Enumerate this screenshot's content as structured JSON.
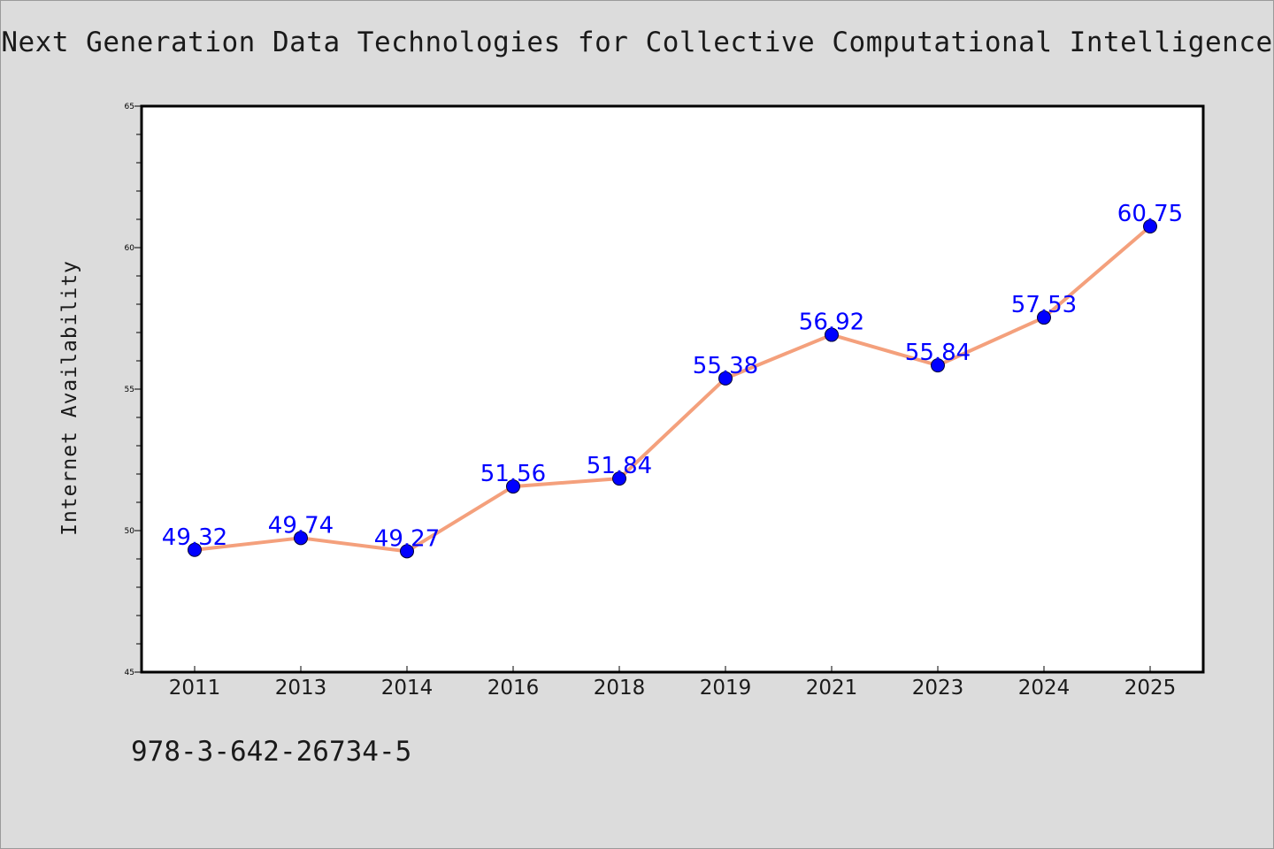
{
  "title": "Next Generation Data Technologies for Collective Computational Intelligence",
  "footer_text": "978-3-642-26734-5",
  "colors": {
    "background": "#dcdcdc",
    "line": "#f4a07c",
    "marker": "#0000ff",
    "data_label": "#0000ff",
    "plot_area": "#ffffff"
  },
  "chart_data": {
    "type": "line",
    "title": "Next Generation Data Technologies for Collective Computational Intelligence",
    "xlabel": "",
    "ylabel": "Internet Availability",
    "categories": [
      "2011",
      "2013",
      "2014",
      "2016",
      "2018",
      "2019",
      "2021",
      "2023",
      "2024",
      "2025"
    ],
    "series": [
      {
        "values": [
          49.32,
          49.74,
          49.27,
          51.56,
          51.84,
          55.38,
          56.92,
          55.84,
          57.53,
          60.75
        ]
      }
    ],
    "data_labels": [
      "49.32",
      "49.74",
      "49.27",
      "51.56",
      "51.84",
      "55.38",
      "56.92",
      "55.84",
      "57.53",
      "60.75"
    ],
    "ylim": [
      45,
      65
    ],
    "yticks": [
      "45",
      "50",
      "55",
      "60",
      "65"
    ],
    "grid": false,
    "legend": "none"
  }
}
